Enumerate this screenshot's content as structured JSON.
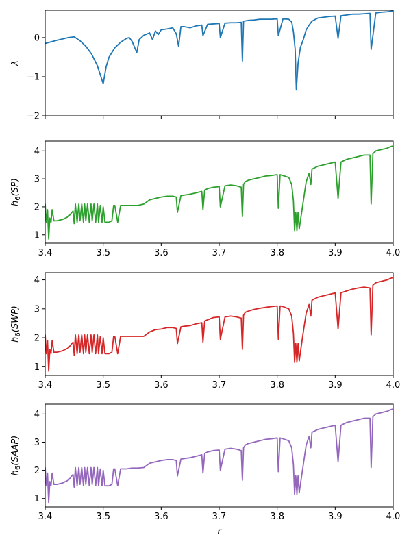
{
  "chart_data": [
    {
      "type": "line",
      "xlabel": "",
      "ylabel": "λ",
      "xlim": [
        3.4,
        4.0
      ],
      "ylim": [
        -2,
        0.7
      ],
      "xticks": [
        3.4,
        3.5,
        3.6,
        3.7,
        3.8,
        3.9,
        4.0
      ],
      "xtick_labels_visible": false,
      "yticks": [
        -2,
        -1,
        0
      ],
      "ytick_labels": [
        "−2",
        "−1",
        "0"
      ],
      "color": "#1f77b4",
      "series": [
        {
          "x": [
            3.4,
            3.42,
            3.44,
            3.45,
            3.46,
            3.47,
            3.48,
            3.49,
            3.495,
            3.5,
            3.505,
            3.51,
            3.52,
            3.53,
            3.54,
            3.545,
            3.55,
            3.555,
            3.558,
            3.562,
            3.57,
            3.58,
            3.585,
            3.59,
            3.595,
            3.6,
            3.61,
            3.62,
            3.626,
            3.63,
            3.634,
            3.64,
            3.65,
            3.66,
            3.67,
            3.672,
            3.68,
            3.69,
            3.7,
            3.702,
            3.71,
            3.72,
            3.73,
            3.738,
            3.74,
            3.742,
            3.75,
            3.76,
            3.77,
            3.78,
            3.79,
            3.8,
            3.802,
            3.81,
            3.82,
            3.825,
            3.828,
            3.831,
            3.833,
            3.836,
            3.84,
            3.845,
            3.85,
            3.855,
            3.86,
            3.87,
            3.88,
            3.89,
            3.9,
            3.905,
            3.91,
            3.92,
            3.93,
            3.94,
            3.95,
            3.96,
            3.962,
            3.97,
            3.98,
            3.99,
            4.0
          ],
          "y": [
            -0.15,
            -0.07,
            0.0,
            0.02,
            -0.08,
            -0.22,
            -0.42,
            -0.72,
            -0.95,
            -1.18,
            -0.75,
            -0.5,
            -0.26,
            -0.12,
            -0.02,
            0.0,
            -0.1,
            -0.28,
            -0.38,
            -0.05,
            0.06,
            0.12,
            -0.05,
            0.17,
            0.08,
            0.2,
            0.22,
            0.25,
            0.1,
            -0.22,
            0.28,
            0.28,
            0.25,
            0.3,
            0.32,
            0.05,
            0.34,
            0.35,
            0.36,
            0.0,
            0.37,
            0.38,
            0.38,
            0.39,
            -0.6,
            0.42,
            0.44,
            0.45,
            0.47,
            0.47,
            0.47,
            0.48,
            0.05,
            0.48,
            0.47,
            0.4,
            0.15,
            -0.3,
            -1.34,
            -0.65,
            -0.25,
            -0.05,
            0.2,
            0.32,
            0.42,
            0.5,
            0.52,
            0.54,
            0.55,
            -0.02,
            0.56,
            0.58,
            0.6,
            0.6,
            0.61,
            0.62,
            -0.3,
            0.63,
            0.65,
            0.66,
            0.68
          ]
        }
      ]
    },
    {
      "type": "line",
      "xlabel": "",
      "ylabel": "h6(SP)",
      "xlim": [
        3.4,
        4.0
      ],
      "ylim": [
        0.7,
        4.35
      ],
      "xticks": [
        3.4,
        3.5,
        3.6,
        3.7,
        3.8,
        3.9,
        4.0
      ],
      "xtick_labels": [
        "3.4",
        "3.5",
        "3.6",
        "3.7",
        "3.8",
        "3.9",
        "4.0"
      ],
      "yticks": [
        1,
        2,
        3,
        4
      ],
      "ytick_labels": [
        "1",
        "2",
        "3",
        "4"
      ],
      "color": "#2ca02c",
      "series": [
        {
          "x": [
            3.4,
            3.402,
            3.404,
            3.406,
            3.408,
            3.41,
            3.412,
            3.415,
            3.42,
            3.43,
            3.44,
            3.448,
            3.45,
            3.452,
            3.455,
            3.458,
            3.46,
            3.463,
            3.466,
            3.468,
            3.47,
            3.473,
            3.476,
            3.479,
            3.481,
            3.484,
            3.487,
            3.49,
            3.492,
            3.495,
            3.498,
            3.5,
            3.503,
            3.51,
            3.515,
            3.518,
            3.52,
            3.525,
            3.53,
            3.54,
            3.55,
            3.56,
            3.57,
            3.58,
            3.59,
            3.6,
            3.61,
            3.62,
            3.626,
            3.628,
            3.634,
            3.64,
            3.65,
            3.66,
            3.67,
            3.672,
            3.675,
            3.68,
            3.69,
            3.7,
            3.702,
            3.71,
            3.72,
            3.73,
            3.738,
            3.74,
            3.742,
            3.745,
            3.75,
            3.76,
            3.77,
            3.78,
            3.79,
            3.8,
            3.802,
            3.805,
            3.81,
            3.82,
            3.825,
            3.828,
            3.83,
            3.832,
            3.834,
            3.836,
            3.838,
            3.84,
            3.845,
            3.85,
            3.855,
            3.858,
            3.86,
            3.87,
            3.88,
            3.89,
            3.9,
            3.905,
            3.91,
            3.92,
            3.93,
            3.94,
            3.95,
            3.96,
            3.962,
            3.965,
            3.97,
            3.98,
            3.99,
            3.995,
            4.0
          ],
          "y": [
            2.1,
            1.45,
            1.9,
            0.85,
            1.6,
            1.45,
            1.9,
            1.5,
            1.5,
            1.55,
            1.65,
            1.85,
            1.4,
            2.1,
            1.45,
            2.1,
            1.5,
            2.1,
            1.45,
            2.1,
            1.5,
            2.1,
            1.45,
            2.1,
            1.5,
            2.1,
            1.45,
            2.1,
            1.45,
            2.05,
            1.45,
            2.0,
            1.45,
            1.45,
            1.5,
            2.05,
            2.05,
            1.45,
            2.05,
            2.05,
            2.05,
            2.05,
            2.1,
            2.25,
            2.3,
            2.35,
            2.38,
            2.38,
            2.35,
            1.8,
            2.4,
            2.42,
            2.45,
            2.5,
            2.55,
            1.9,
            2.6,
            2.65,
            2.7,
            2.72,
            2.0,
            2.75,
            2.78,
            2.75,
            2.7,
            1.65,
            2.8,
            2.9,
            2.95,
            3.0,
            3.05,
            3.1,
            3.12,
            3.15,
            1.95,
            3.15,
            3.12,
            3.05,
            2.8,
            2.2,
            1.15,
            1.8,
            1.15,
            1.8,
            1.2,
            1.5,
            2.2,
            2.9,
            3.2,
            2.8,
            3.35,
            3.45,
            3.5,
            3.55,
            3.6,
            2.3,
            3.6,
            3.7,
            3.75,
            3.8,
            3.85,
            3.85,
            2.1,
            3.9,
            4.0,
            4.05,
            4.1,
            4.15,
            4.18
          ]
        }
      ]
    },
    {
      "type": "line",
      "xlabel": "",
      "ylabel": "h6(SWP)",
      "xlim": [
        3.4,
        4.0
      ],
      "ylim": [
        0.7,
        4.25
      ],
      "xticks": [
        3.4,
        3.5,
        3.6,
        3.7,
        3.8,
        3.9,
        4.0
      ],
      "xtick_labels": [
        "3.4",
        "3.5",
        "3.6",
        "3.7",
        "3.8",
        "3.9",
        "4.0"
      ],
      "yticks": [
        1,
        2,
        3,
        4
      ],
      "ytick_labels": [
        "1",
        "2",
        "3",
        "4"
      ],
      "color": "#d62728",
      "series": [
        {
          "x": [
            3.4,
            3.402,
            3.404,
            3.406,
            3.408,
            3.41,
            3.412,
            3.415,
            3.42,
            3.43,
            3.44,
            3.448,
            3.45,
            3.452,
            3.455,
            3.458,
            3.46,
            3.463,
            3.466,
            3.468,
            3.47,
            3.473,
            3.476,
            3.479,
            3.481,
            3.484,
            3.487,
            3.49,
            3.492,
            3.495,
            3.498,
            3.5,
            3.503,
            3.51,
            3.515,
            3.518,
            3.52,
            3.525,
            3.53,
            3.54,
            3.55,
            3.56,
            3.57,
            3.58,
            3.59,
            3.6,
            3.61,
            3.62,
            3.626,
            3.628,
            3.634,
            3.64,
            3.65,
            3.66,
            3.67,
            3.672,
            3.675,
            3.68,
            3.69,
            3.7,
            3.702,
            3.71,
            3.72,
            3.73,
            3.738,
            3.74,
            3.742,
            3.745,
            3.75,
            3.76,
            3.77,
            3.78,
            3.79,
            3.8,
            3.802,
            3.805,
            3.81,
            3.82,
            3.825,
            3.828,
            3.83,
            3.832,
            3.834,
            3.836,
            3.838,
            3.84,
            3.845,
            3.85,
            3.855,
            3.858,
            3.86,
            3.87,
            3.88,
            3.89,
            3.9,
            3.905,
            3.91,
            3.92,
            3.93,
            3.94,
            3.95,
            3.96,
            3.962,
            3.965,
            3.97,
            3.98,
            3.99,
            3.995,
            4.0
          ],
          "y": [
            2.1,
            1.45,
            1.9,
            0.85,
            1.6,
            1.45,
            1.9,
            1.5,
            1.5,
            1.55,
            1.65,
            1.85,
            1.4,
            2.1,
            1.45,
            2.1,
            1.5,
            2.1,
            1.45,
            2.1,
            1.5,
            2.1,
            1.45,
            2.1,
            1.5,
            2.1,
            1.45,
            2.1,
            1.45,
            2.05,
            1.45,
            2.0,
            1.45,
            1.45,
            1.5,
            2.05,
            2.05,
            1.45,
            2.05,
            2.05,
            2.05,
            2.05,
            2.05,
            2.2,
            2.28,
            2.3,
            2.35,
            2.35,
            2.32,
            1.8,
            2.38,
            2.4,
            2.42,
            2.48,
            2.52,
            1.85,
            2.58,
            2.62,
            2.7,
            2.72,
            1.95,
            2.72,
            2.75,
            2.72,
            2.68,
            1.6,
            2.78,
            2.88,
            2.92,
            2.98,
            3.02,
            3.05,
            3.08,
            3.1,
            1.95,
            3.1,
            3.08,
            3.0,
            2.75,
            2.15,
            1.15,
            1.8,
            1.15,
            1.8,
            1.2,
            1.5,
            2.2,
            2.85,
            3.15,
            2.75,
            3.3,
            3.4,
            3.45,
            3.5,
            3.55,
            2.3,
            3.55,
            3.62,
            3.68,
            3.72,
            3.75,
            3.72,
            2.1,
            3.82,
            3.9,
            3.95,
            4.0,
            4.05,
            4.08
          ]
        }
      ]
    },
    {
      "type": "line",
      "xlabel": "r",
      "ylabel": "h6(SAAP)",
      "xlim": [
        3.4,
        4.0
      ],
      "ylim": [
        0.7,
        4.35
      ],
      "xticks": [
        3.4,
        3.5,
        3.6,
        3.7,
        3.8,
        3.9,
        4.0
      ],
      "xtick_labels": [
        "3.4",
        "3.5",
        "3.6",
        "3.7",
        "3.8",
        "3.9",
        "4.0"
      ],
      "yticks": [
        1,
        2,
        3,
        4
      ],
      "ytick_labels": [
        "1",
        "2",
        "3",
        "4"
      ],
      "color": "#9467bd",
      "series": [
        {
          "x": [
            3.4,
            3.402,
            3.404,
            3.406,
            3.408,
            3.41,
            3.412,
            3.415,
            3.42,
            3.43,
            3.44,
            3.448,
            3.45,
            3.452,
            3.455,
            3.458,
            3.46,
            3.463,
            3.466,
            3.468,
            3.47,
            3.473,
            3.476,
            3.479,
            3.481,
            3.484,
            3.487,
            3.49,
            3.492,
            3.495,
            3.498,
            3.5,
            3.503,
            3.51,
            3.515,
            3.518,
            3.52,
            3.525,
            3.53,
            3.54,
            3.55,
            3.56,
            3.57,
            3.58,
            3.59,
            3.6,
            3.61,
            3.62,
            3.626,
            3.628,
            3.634,
            3.64,
            3.65,
            3.66,
            3.67,
            3.672,
            3.675,
            3.68,
            3.69,
            3.7,
            3.702,
            3.71,
            3.72,
            3.73,
            3.738,
            3.74,
            3.742,
            3.745,
            3.75,
            3.76,
            3.77,
            3.78,
            3.79,
            3.8,
            3.802,
            3.805,
            3.81,
            3.82,
            3.825,
            3.828,
            3.83,
            3.832,
            3.834,
            3.836,
            3.838,
            3.84,
            3.845,
            3.85,
            3.855,
            3.858,
            3.86,
            3.87,
            3.88,
            3.89,
            3.9,
            3.905,
            3.91,
            3.92,
            3.93,
            3.94,
            3.95,
            3.96,
            3.962,
            3.965,
            3.97,
            3.98,
            3.99,
            3.995,
            4.0
          ],
          "y": [
            2.1,
            1.45,
            1.9,
            0.85,
            1.6,
            1.45,
            1.9,
            1.5,
            1.5,
            1.55,
            1.65,
            1.85,
            1.4,
            2.1,
            1.45,
            2.1,
            1.5,
            2.1,
            1.45,
            2.1,
            1.5,
            2.1,
            1.45,
            2.1,
            1.5,
            2.1,
            1.45,
            2.1,
            1.45,
            2.05,
            1.45,
            2.0,
            1.45,
            1.45,
            1.5,
            2.05,
            2.05,
            1.45,
            2.05,
            2.05,
            2.08,
            2.08,
            2.1,
            2.25,
            2.3,
            2.35,
            2.38,
            2.38,
            2.35,
            1.8,
            2.4,
            2.42,
            2.45,
            2.5,
            2.55,
            1.9,
            2.6,
            2.65,
            2.7,
            2.72,
            2.0,
            2.75,
            2.78,
            2.75,
            2.7,
            1.65,
            2.8,
            2.9,
            2.95,
            3.0,
            3.05,
            3.1,
            3.12,
            3.15,
            1.95,
            3.15,
            3.12,
            3.05,
            2.8,
            2.2,
            1.15,
            1.8,
            1.15,
            1.8,
            1.2,
            1.5,
            2.2,
            2.9,
            3.2,
            2.8,
            3.35,
            3.45,
            3.5,
            3.55,
            3.6,
            2.3,
            3.6,
            3.7,
            3.75,
            3.8,
            3.85,
            3.85,
            2.1,
            3.9,
            4.0,
            4.05,
            4.1,
            4.15,
            4.18
          ]
        }
      ]
    }
  ]
}
